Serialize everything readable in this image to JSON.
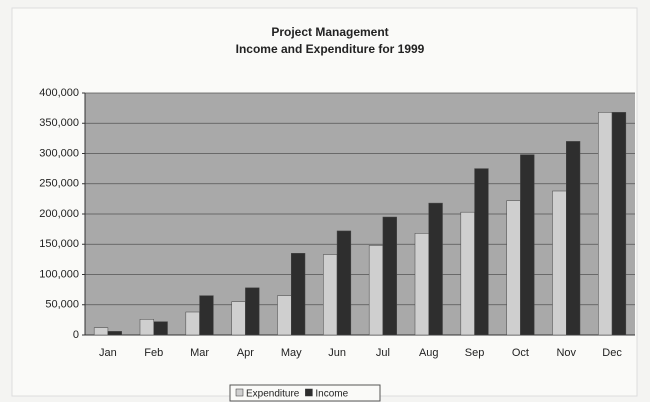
{
  "chart_data": {
    "type": "bar",
    "title": "Project Management",
    "subtitle": "Income and Expenditure for 1999",
    "categories": [
      "Jan",
      "Feb",
      "Mar",
      "Apr",
      "May",
      "Jun",
      "Jul",
      "Aug",
      "Sep",
      "Oct",
      "Nov",
      "Dec"
    ],
    "series": [
      {
        "name": "Expenditure",
        "color": "#cfcfcf",
        "values": [
          12000,
          26000,
          38000,
          55000,
          65000,
          133000,
          148000,
          168000,
          203000,
          222000,
          238000,
          368000
        ]
      },
      {
        "name": "Income",
        "color": "#2e2e2e",
        "values": [
          6000,
          22000,
          65000,
          78000,
          135000,
          172000,
          195000,
          218000,
          275000,
          298000,
          320000,
          368000
        ]
      }
    ],
    "ylim": [
      0,
      400000
    ],
    "yticks": [
      0,
      {
        "value": 50000,
        "label": "50,000"
      },
      {
        "value": 100000,
        "label": "100,000"
      },
      {
        "value": 150000,
        "label": "150,000"
      },
      {
        "value": 200000,
        "label": "200,000"
      },
      {
        "value": 250000,
        "label": "250,000"
      },
      {
        "value": 300000,
        "label": "300,000"
      },
      {
        "value": 350000,
        "label": "350,000"
      },
      {
        "value": 400000,
        "label": "400,000"
      }
    ],
    "grid": true,
    "legend": "bottom"
  }
}
